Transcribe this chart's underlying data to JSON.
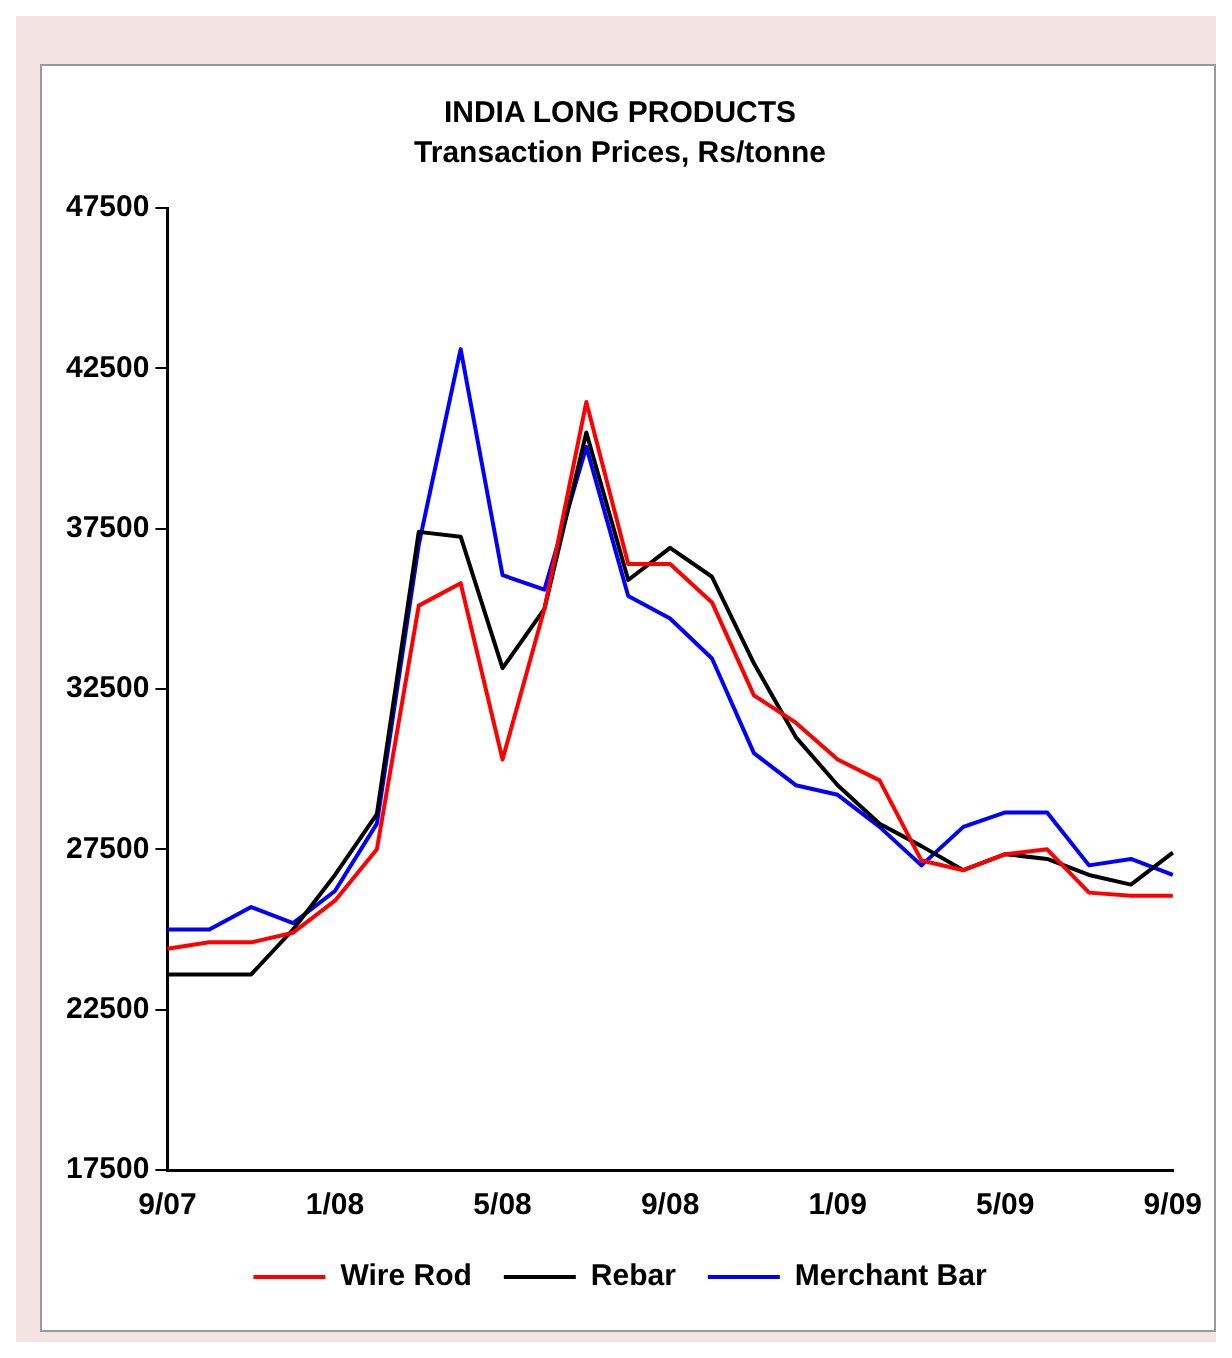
{
  "chart_data": {
    "type": "line",
    "title": "INDIA LONG PRODUCTS",
    "subtitle": "Transaction Prices, Rs/tonne",
    "categories": [
      "9/07",
      null,
      null,
      null,
      "1/08",
      null,
      null,
      null,
      "5/08",
      null,
      null,
      null,
      "9/08",
      null,
      null,
      null,
      "1/09",
      null,
      null,
      null,
      "5/09",
      null,
      null,
      null,
      "9/09"
    ],
    "series": [
      {
        "name": "Wire Rod",
        "color": "#ff0000",
        "values": [
          24400,
          24600,
          24600,
          24900,
          25900,
          27500,
          35100,
          35800,
          30300,
          35000,
          41450,
          36400,
          36400,
          35200,
          32300,
          31450,
          30300,
          29650,
          27150,
          26850,
          27350,
          27500,
          26150,
          26050,
          26050
        ]
      },
      {
        "name": "Rebar",
        "color": "#000000",
        "values": [
          23600,
          23600,
          23600,
          25000,
          26700,
          28600,
          37400,
          37250,
          33150,
          35000,
          40500,
          35900,
          36900,
          36000,
          33300,
          31000,
          29500,
          28300,
          27600,
          26850,
          27350,
          27200,
          26700,
          26400,
          27400
        ]
      },
      {
        "name": "Merchant Bar",
        "color": "#0000ff",
        "values": [
          25000,
          25000,
          25700,
          25200,
          26200,
          28300,
          37000,
          43100,
          36050,
          35600,
          40050,
          35400,
          34700,
          33450,
          30500,
          29500,
          29200,
          28200,
          27000,
          28200,
          28650,
          28650,
          27000,
          27200,
          26700
        ]
      }
    ],
    "ylim": [
      17500,
      47500
    ],
    "yticks": [
      17500,
      22500,
      27500,
      32500,
      37500,
      42500,
      47500
    ],
    "grid": false,
    "legend": "bottom",
    "marker": "none",
    "line_style": "solid"
  }
}
